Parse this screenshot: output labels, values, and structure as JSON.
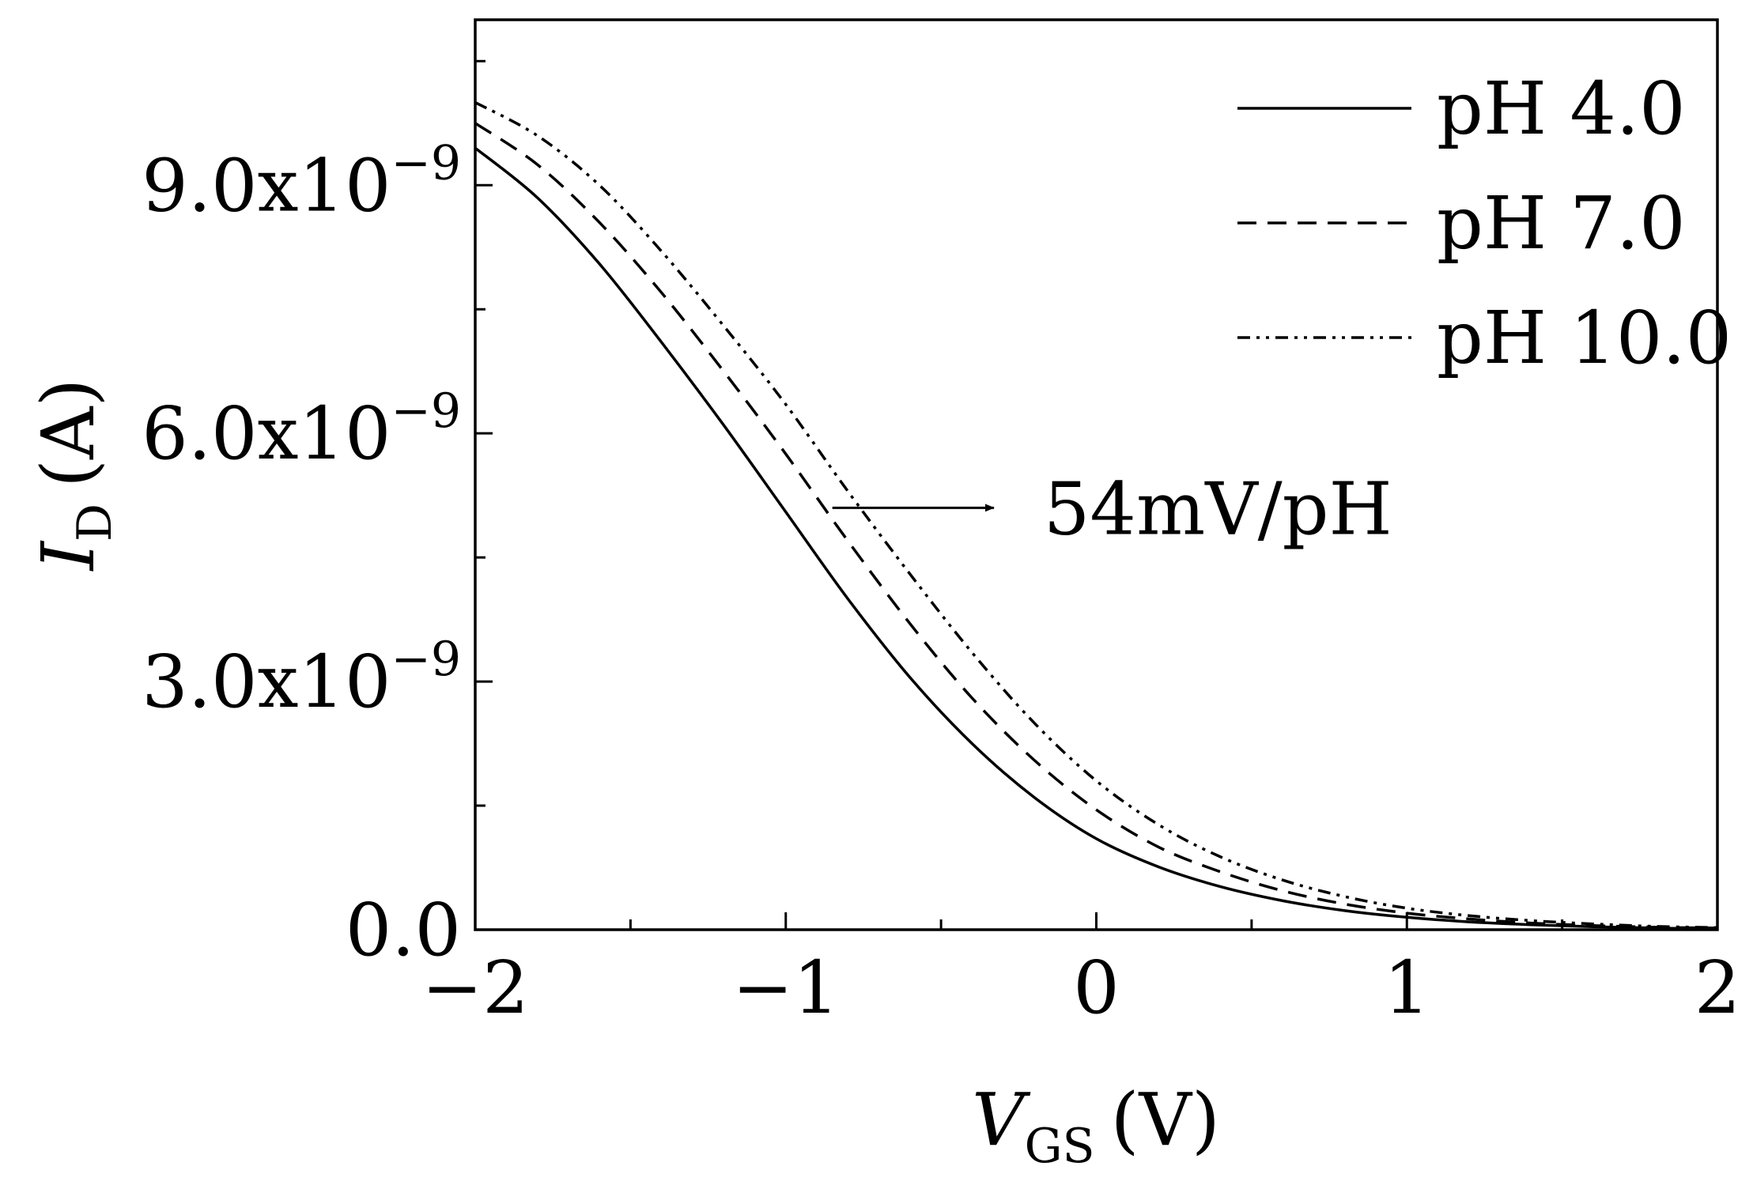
{
  "chart_data": {
    "type": "line",
    "title": "",
    "xlabel": {
      "symbol": "V",
      "subscript": "GS",
      "unit": "(V)"
    },
    "ylabel": {
      "symbol": "I",
      "subscript": "D",
      "unit": "(A)"
    },
    "xlim": [
      -2,
      2
    ],
    "ylim": [
      0,
      1.1e-08
    ],
    "xticks": [
      {
        "value": -2,
        "label": "−2"
      },
      {
        "value": -1,
        "label": "−1"
      },
      {
        "value": 0,
        "label": "0"
      },
      {
        "value": 1,
        "label": "1"
      },
      {
        "value": 2,
        "label": "2"
      }
    ],
    "yticks": [
      {
        "value": 0,
        "mantissa": "0.0",
        "exponent": ""
      },
      {
        "value": 3e-09,
        "mantissa": "3.0x10",
        "exponent": "−9"
      },
      {
        "value": 6e-09,
        "mantissa": "6.0x10",
        "exponent": "−9"
      },
      {
        "value": 9e-09,
        "mantissa": "9.0x10",
        "exponent": "−9"
      }
    ],
    "grid": false,
    "legend_position": "top-right",
    "x": [
      -2.0,
      -1.8,
      -1.6,
      -1.4,
      -1.2,
      -1.0,
      -0.8,
      -0.6,
      -0.4,
      -0.2,
      0.0,
      0.2,
      0.4,
      0.6,
      0.8,
      1.0,
      1.2,
      1.4,
      1.6,
      1.8,
      2.0
    ],
    "series": [
      {
        "name": "pH 4.0",
        "style": "solid",
        "values": [
          9.45e-09,
          8.85e-09,
          8.05e-09,
          7.1e-09,
          6.1e-09,
          5.05e-09,
          4e-09,
          3.05e-09,
          2.25e-09,
          1.6e-09,
          1.1e-09,
          7.6e-10,
          5.2e-10,
          3.5e-10,
          2.3e-10,
          1.5e-10,
          9.5e-11,
          6e-11,
          3.5e-11,
          2e-11,
          1e-11
        ]
      },
      {
        "name": "pH 7.0",
        "style": "dashed",
        "values": [
          9.75e-09,
          9.25e-09,
          8.55e-09,
          7.7e-09,
          6.75e-09,
          5.75e-09,
          4.7e-09,
          3.7e-09,
          2.8e-09,
          2.05e-09,
          1.45e-09,
          1e-09,
          7e-10,
          4.7e-10,
          3.1e-10,
          2e-10,
          1.3e-10,
          8e-11,
          5e-11,
          3e-11,
          2e-11
        ]
      },
      {
        "name": "pH 10.0",
        "style": "dash-dot-dot",
        "values": [
          1e-08,
          9.6e-09,
          9e-09,
          8.2e-09,
          7.3e-09,
          6.35e-09,
          5.3e-09,
          4.3e-09,
          3.35e-09,
          2.5e-09,
          1.8e-09,
          1.27e-09,
          8.8e-10,
          6e-10,
          4e-10,
          2.6e-10,
          1.7e-10,
          1.1e-10,
          7e-11,
          4e-11,
          2.5e-11
        ]
      }
    ],
    "annotation": {
      "text": "54mV/pH",
      "arrow_from": [
        -0.85,
        5.1e-09
      ],
      "arrow_to": [
        -0.33,
        5.1e-09
      ]
    }
  }
}
